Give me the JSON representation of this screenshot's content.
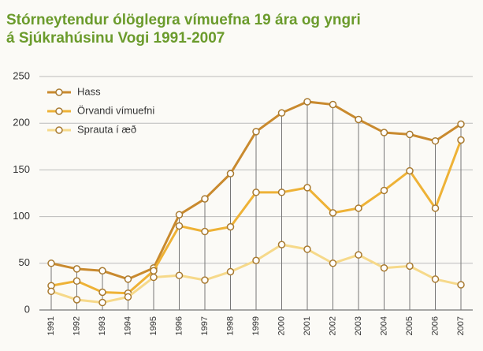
{
  "chart_data": {
    "type": "line",
    "title": [
      "Stórneytendur ólöglegra vímuefna 19 ára og yngri",
      "á Sjúkrahúsinu Vogi 1991-2007"
    ],
    "categories": [
      "1991",
      "1992",
      "1993",
      "1994",
      "1995",
      "1996",
      "1997",
      "1998",
      "1999",
      "2000",
      "2001",
      "2002",
      "2003",
      "2004",
      "2005",
      "2006",
      "2007"
    ],
    "series": [
      {
        "name": "Hass",
        "color": "#c98a2e",
        "values": [
          50,
          44,
          42,
          33,
          45,
          102,
          119,
          146,
          191,
          211,
          223,
          220,
          204,
          190,
          188,
          181,
          199
        ]
      },
      {
        "name": "Örvandi vímuefni",
        "color": "#eeb236",
        "values": [
          26,
          31,
          19,
          18,
          42,
          90,
          84,
          89,
          126,
          126,
          131,
          104,
          109,
          128,
          149,
          109,
          182
        ]
      },
      {
        "name": "Sprauta í æð",
        "color": "#f6d98a",
        "values": [
          20,
          11,
          8,
          14,
          35,
          37,
          32,
          41,
          53,
          70,
          65,
          50,
          59,
          45,
          47,
          33,
          27
        ]
      }
    ],
    "ylim": [
      0,
      250
    ],
    "yticks": [
      0,
      50,
      100,
      150,
      200,
      250
    ],
    "grid": true,
    "legend": "top-left"
  }
}
